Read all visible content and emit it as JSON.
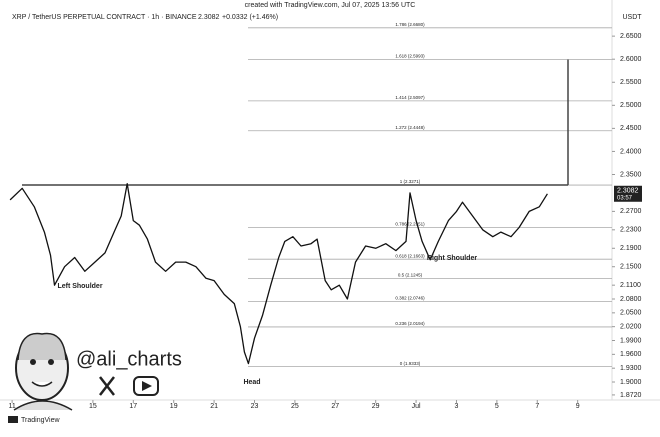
{
  "header": {
    "created": "created with TradingView.com, Jul 07, 2025 13:56 UTC",
    "symbol": "XRP / TetherUS PERPETUAL CONTRACT · 1h · BINANCE",
    "price": "2.3082",
    "change": "+0.0332 (+1.46%)"
  },
  "chart_data": {
    "type": "line",
    "y_unit": "USDT",
    "last_time": "03:57",
    "grid": false,
    "x": [
      10.9,
      11.5,
      12.1,
      12.6,
      12.9,
      13.1,
      13.6,
      14.1,
      14.6,
      15.1,
      15.6,
      16.1,
      16.4,
      16.7,
      17.0,
      17.3,
      17.7,
      18.1,
      18.6,
      19.1,
      19.6,
      20.1,
      20.6,
      21.0,
      21.5,
      22.0,
      22.3,
      22.5,
      22.7,
      23.0,
      23.4,
      23.8,
      24.2,
      24.5,
      24.9,
      25.3,
      25.8,
      26.1,
      26.5,
      26.8,
      27.2,
      27.6,
      28.0,
      28.5,
      29.0,
      29.5,
      30.0,
      30.5,
      30.7,
      31.0,
      31.3,
      31.7,
      32.1,
      32.6,
      33.0,
      33.3,
      33.8,
      34.3,
      34.8,
      35.2,
      35.7,
      36.1,
      36.6,
      37.1,
      37.5
    ],
    "series": [
      {
        "color": "#111111",
        "values": [
          2.295,
          2.32,
          2.28,
          2.225,
          2.175,
          2.11,
          2.15,
          2.17,
          2.14,
          2.16,
          2.18,
          2.23,
          2.26,
          2.33,
          2.25,
          2.24,
          2.21,
          2.16,
          2.14,
          2.16,
          2.16,
          2.15,
          2.125,
          2.12,
          2.09,
          2.07,
          2.02,
          1.965,
          1.94,
          1.995,
          2.045,
          2.11,
          2.17,
          2.205,
          2.215,
          2.195,
          2.2,
          2.21,
          2.12,
          2.1,
          2.11,
          2.08,
          2.16,
          2.195,
          2.19,
          2.2,
          2.185,
          2.205,
          2.31,
          2.25,
          2.205,
          2.165,
          2.205,
          2.25,
          2.27,
          2.29,
          2.26,
          2.23,
          2.215,
          2.225,
          2.215,
          2.235,
          2.27,
          2.28,
          2.3082
        ]
      }
    ],
    "xlim": [
      10.4,
      40.7
    ],
    "xticks": [
      {
        "value": 11,
        "label": "11"
      },
      15,
      17,
      19,
      21,
      23,
      25,
      27,
      29,
      {
        "value": 31,
        "label": "Jul"
      },
      {
        "value": 33,
        "label": "3"
      },
      {
        "value": 35,
        "label": "5"
      },
      {
        "value": 37,
        "label": "7"
      },
      {
        "value": 39,
        "label": "9"
      }
    ],
    "ylim": [
      1.861,
      2.698
    ],
    "yticks": [
      {
        "value": 2.65,
        "label": "2.6500"
      },
      {
        "value": 2.6,
        "label": "2.6000"
      },
      {
        "value": 2.55,
        "label": "2.5500"
      },
      {
        "value": 2.5,
        "label": "2.5000"
      },
      {
        "value": 2.45,
        "label": "2.4500"
      },
      {
        "value": 2.4,
        "label": "2.4000"
      },
      {
        "value": 2.35,
        "label": "2.3500"
      },
      {
        "value": 2.27,
        "label": "2.2700"
      },
      {
        "value": 2.23,
        "label": "2.2300"
      },
      {
        "value": 2.19,
        "label": "2.1900"
      },
      {
        "value": 2.15,
        "label": "2.1500"
      },
      {
        "value": 2.11,
        "label": "2.1100"
      },
      {
        "value": 2.08,
        "label": "2.0800"
      },
      {
        "value": 2.05,
        "label": "2.0500"
      },
      {
        "value": 2.02,
        "label": "2.0200"
      },
      {
        "value": 1.99,
        "label": "1.9900"
      },
      {
        "value": 1.96,
        "label": "1.9600"
      },
      {
        "value": 1.93,
        "label": "1.9300"
      },
      {
        "value": 1.9,
        "label": "1.9000"
      },
      {
        "value": 1.872,
        "label": "1.8720"
      }
    ],
    "levels": [
      {
        "label": "1.786 (2.6680)",
        "value": 2.668
      },
      {
        "label": "1.618 (2.5993)",
        "value": 2.5993
      },
      {
        "label": "1.414 (2.5097)",
        "value": 2.5097
      },
      {
        "label": "1.272 (2.4448)",
        "value": 2.4448
      },
      {
        "label": "1 (2.3271)",
        "value": 2.3271
      },
      {
        "label": "0.786 (2.2351)",
        "value": 2.2351
      },
      {
        "label": "0.618 (2.1663)",
        "value": 2.1663
      },
      {
        "label": "0.5 (2.1245)",
        "value": 2.1245
      },
      {
        "label": "0.382 (2.0746)",
        "value": 2.0746
      },
      {
        "label": "0.236 (2.0194)",
        "value": 2.0194
      },
      {
        "label": "0 (1.9333)",
        "value": 1.9333
      }
    ],
    "annotations": [
      "Left Shoulder",
      "Head",
      "Right Shoulder"
    ],
    "watermark": "@ali_charts",
    "footer": "TradingView"
  }
}
